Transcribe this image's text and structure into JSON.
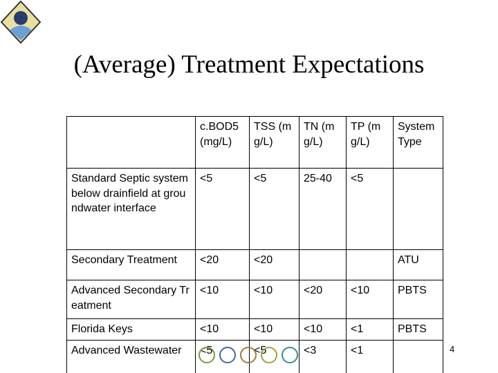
{
  "title": "(Average) Treatment Expectations",
  "table": {
    "header": [
      null,
      "c.BOD5 (mg/L)",
      "TSS (mg/L)",
      "TN (mg/L)",
      "TP (mg/L)",
      "System Type"
    ],
    "rows": [
      [
        "Standard Septic system below drainfield at groundwater interface",
        "<5",
        "<5",
        "25-40",
        "<5",
        null
      ],
      [
        "Secondary Treatment",
        "<20",
        "<20",
        null,
        null,
        "ATU"
      ],
      [
        "Advanced Secondary Treatment",
        "<10",
        "<10",
        "<20",
        "<10",
        "PBTS"
      ],
      [
        "Florida Keys",
        "<10",
        "<10",
        "<10",
        "<1",
        "PBTS"
      ],
      [
        "Advanced Wastewater",
        "<5",
        "<5",
        "<3",
        "<1",
        null
      ]
    ]
  },
  "page_number": "4"
}
